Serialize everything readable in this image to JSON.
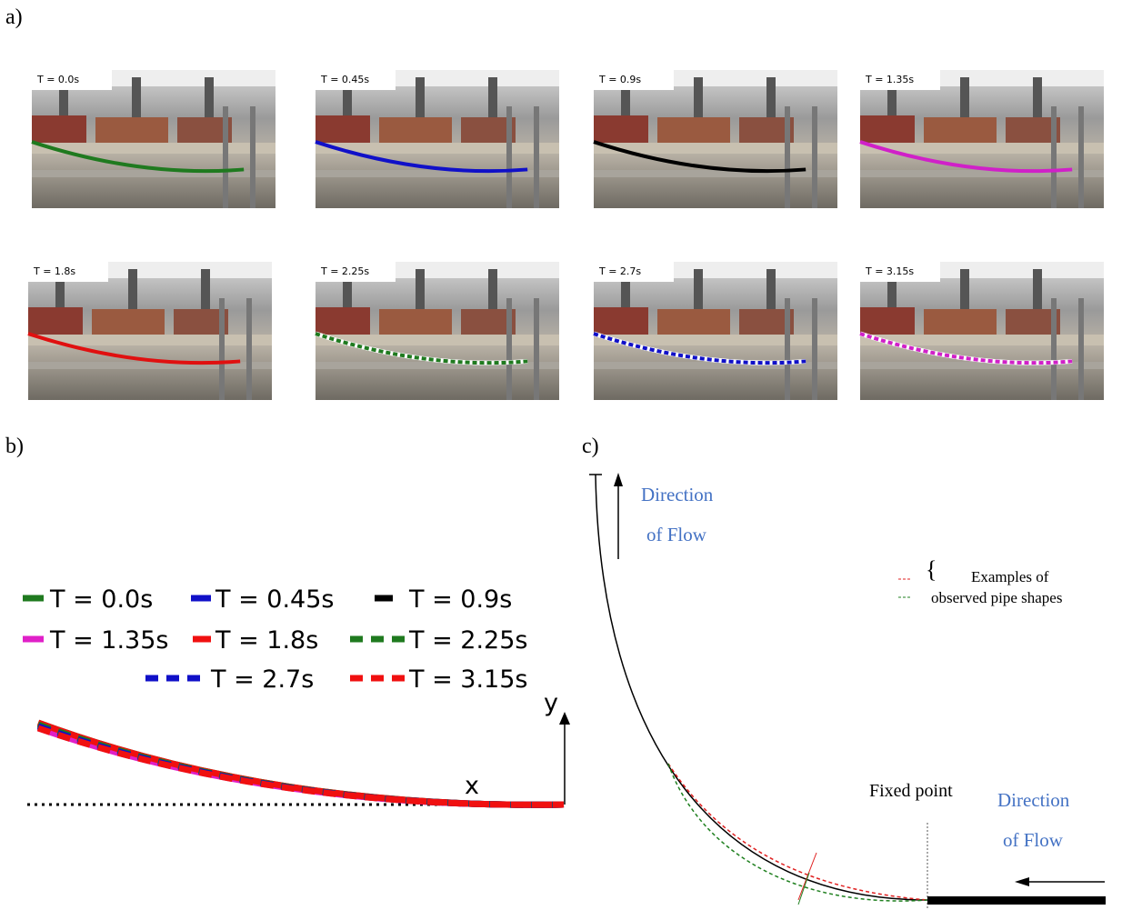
{
  "panels": {
    "a": {
      "label": "a)",
      "frames": [
        {
          "label": "T = 0.0s",
          "color": "#1f7a1f",
          "dashed": false
        },
        {
          "label": "T = 0.45s",
          "color": "#1010c8",
          "dashed": false
        },
        {
          "label": "T = 0.9s",
          "color": "#000000",
          "dashed": false
        },
        {
          "label": "T = 1.35s",
          "color": "#d020c8",
          "dashed": false
        },
        {
          "label": "T = 1.8s",
          "color": "#e01010",
          "dashed": false
        },
        {
          "label": "T = 2.25s",
          "color": "#1f7a1f",
          "dashed": true
        },
        {
          "label": "T = 2.7s",
          "color": "#1010c8",
          "dashed": true
        },
        {
          "label": "T = 3.15s",
          "color": "#d020c8",
          "dashed": true
        }
      ]
    },
    "b": {
      "label": "b)",
      "legend": [
        {
          "label": "T = 0.0s",
          "color": "#1f7a1f",
          "dashed": false
        },
        {
          "label": "T = 0.45s",
          "color": "#1010c8",
          "dashed": false
        },
        {
          "label": "T = 0.9s",
          "color": "#000000",
          "dashed": false
        },
        {
          "label": "T = 1.35s",
          "color": "#e020c8",
          "dashed": false
        },
        {
          "label": "T = 1.8s",
          "color": "#f01010",
          "dashed": false
        },
        {
          "label": "T = 2.25s",
          "color": "#1f7a1f",
          "dashed": true
        },
        {
          "label": "T = 2.7s",
          "color": "#1010c8",
          "dashed": true
        },
        {
          "label": "T = 3.15s",
          "color": "#f01010",
          "dashed": true
        }
      ],
      "x_axis": "x",
      "y_axis": "y"
    },
    "c": {
      "label": "c)",
      "flow_top": [
        "Direction",
        "of Flow"
      ],
      "shapes_note": [
        "Examples of",
        "observed pipe shapes"
      ],
      "fixed_point": "Fixed point",
      "flow_bottom": [
        "Direction",
        "of Flow"
      ]
    }
  }
}
